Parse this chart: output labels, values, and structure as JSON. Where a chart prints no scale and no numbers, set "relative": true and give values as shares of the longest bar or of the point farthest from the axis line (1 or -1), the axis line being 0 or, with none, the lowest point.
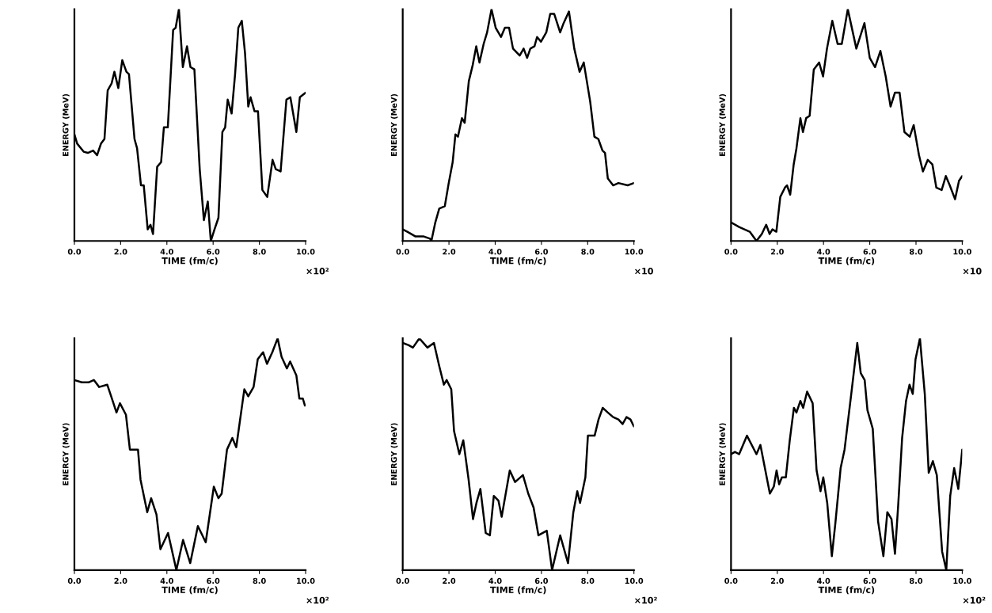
{
  "chart_data": [
    {
      "type": "line",
      "relative": true,
      "xlabel": "TIME (fm/c)",
      "ylabel": "ENERGY (MeV)",
      "annotations": [
        "×10²"
      ],
      "color": "#000000",
      "xlim": [
        0,
        10
      ],
      "xticks": [
        {
          "value": 0,
          "label": "0.0"
        },
        {
          "value": 2,
          "label": "2.0"
        },
        {
          "value": 4,
          "label": "4.0"
        },
        {
          "value": 6,
          "label": "6.0"
        },
        {
          "value": 8,
          "label": "8.0"
        },
        {
          "value": 10,
          "label": "10.0"
        }
      ],
      "x": [
        0,
        0.12,
        0.4,
        0.58,
        0.81,
        0.98,
        1.15,
        1.3,
        1.44,
        1.61,
        1.73,
        1.9,
        2.07,
        2.25,
        2.36,
        2.6,
        2.71,
        2.88,
        3.0,
        3.17,
        3.29,
        3.4,
        3.58,
        3.75,
        3.87,
        4.04,
        4.27,
        4.38,
        4.52,
        4.69,
        4.87,
        5.02,
        5.19,
        5.42,
        5.6,
        5.77,
        5.9,
        6.06,
        6.23,
        6.4,
        6.52,
        6.63,
        6.8,
        6.95,
        7.09,
        7.24,
        7.38,
        7.52,
        7.62,
        7.79,
        7.94,
        8.13,
        8.34,
        8.57,
        8.71,
        8.92,
        9.17,
        9.34,
        9.6,
        9.75,
        10
      ],
      "values": [
        0.46,
        0.42,
        0.385,
        0.38,
        0.39,
        0.37,
        0.42,
        0.44,
        0.65,
        0.68,
        0.73,
        0.66,
        0.78,
        0.73,
        0.72,
        0.44,
        0.4,
        0.24,
        0.24,
        0.05,
        0.07,
        0.03,
        0.32,
        0.34,
        0.49,
        0.49,
        0.91,
        0.92,
        1.0,
        0.75,
        0.84,
        0.75,
        0.74,
        0.31,
        0.09,
        0.17,
        0.0,
        0.05,
        0.1,
        0.47,
        0.49,
        0.61,
        0.55,
        0.72,
        0.92,
        0.95,
        0.81,
        0.58,
        0.62,
        0.56,
        0.56,
        0.22,
        0.19,
        0.35,
        0.31,
        0.3,
        0.61,
        0.62,
        0.47,
        0.62,
        0.64
      ]
    },
    {
      "type": "line",
      "relative": true,
      "xlabel": "TIME (fm/c)",
      "ylabel": "ENERGY (MeV)",
      "annotations": [
        "×10"
      ],
      "color": "#000000",
      "xlim": [
        0,
        10
      ],
      "xticks": [
        {
          "value": 0,
          "label": "0.0"
        },
        {
          "value": 2,
          "label": "2.0"
        },
        {
          "value": 4,
          "label": "4.0"
        },
        {
          "value": 6,
          "label": "6.0"
        },
        {
          "value": 8,
          "label": "8.0"
        },
        {
          "value": 10,
          "label": "10.0"
        }
      ],
      "x": [
        0,
        0.2,
        0.54,
        0.89,
        1.18,
        1.24,
        1.41,
        1.58,
        1.82,
        1.99,
        2.16,
        2.28,
        2.39,
        2.56,
        2.68,
        2.86,
        3.03,
        3.18,
        3.32,
        3.5,
        3.65,
        3.84,
        4.02,
        4.25,
        4.42,
        4.6,
        4.77,
        5.06,
        5.23,
        5.38,
        5.52,
        5.7,
        5.81,
        5.98,
        6.21,
        6.38,
        6.55,
        6.81,
        6.96,
        7.19,
        7.42,
        7.65,
        7.83,
        8.11,
        8.29,
        8.46,
        8.64,
        8.75,
        8.87,
        9.1,
        9.33,
        9.73,
        10
      ],
      "values": [
        0.05,
        0.04,
        0.02,
        0.02,
        0.01,
        0,
        0.08,
        0.14,
        0.15,
        0.25,
        0.34,
        0.46,
        0.45,
        0.53,
        0.51,
        0.69,
        0.76,
        0.84,
        0.77,
        0.85,
        0.9,
        1.0,
        0.92,
        0.88,
        0.92,
        0.92,
        0.83,
        0.8,
        0.83,
        0.79,
        0.83,
        0.84,
        0.88,
        0.86,
        0.9,
        0.98,
        0.98,
        0.9,
        0.94,
        0.99,
        0.83,
        0.73,
        0.77,
        0.6,
        0.45,
        0.44,
        0.39,
        0.38,
        0.27,
        0.24,
        0.25,
        0.24,
        0.25
      ]
    },
    {
      "type": "line",
      "relative": true,
      "xlabel": "TIME (fm/c)",
      "ylabel": "ENERGY (MeV)",
      "annotations": [
        "×10"
      ],
      "color": "#000000",
      "xlim": [
        0,
        10
      ],
      "xticks": [
        {
          "value": 0,
          "label": "0.0"
        },
        {
          "value": 2,
          "label": "2.0"
        },
        {
          "value": 4,
          "label": "4.0"
        },
        {
          "value": 6,
          "label": "6.0"
        },
        {
          "value": 8,
          "label": "8.0"
        },
        {
          "value": 10,
          "label": "10.0"
        }
      ],
      "x": [
        0,
        0.35,
        0.81,
        1.1,
        1.33,
        1.52,
        1.67,
        1.79,
        1.96,
        2.13,
        2.33,
        2.42,
        2.56,
        2.71,
        2.83,
        3.0,
        3.11,
        3.25,
        3.4,
        3.58,
        3.81,
        3.98,
        4.15,
        4.38,
        4.61,
        4.79,
        5.05,
        5.42,
        5.77,
        6.0,
        6.23,
        6.46,
        6.69,
        6.9,
        7.09,
        7.29,
        7.5,
        7.73,
        7.9,
        8.13,
        8.3,
        8.51,
        8.71,
        8.88,
        9.11,
        9.29,
        9.46,
        9.69,
        9.86,
        10
      ],
      "values": [
        0.08,
        0.06,
        0.04,
        0.0,
        0.03,
        0.07,
        0.03,
        0.05,
        0.04,
        0.19,
        0.23,
        0.24,
        0.2,
        0.33,
        0.4,
        0.53,
        0.47,
        0.53,
        0.54,
        0.74,
        0.77,
        0.71,
        0.83,
        0.95,
        0.85,
        0.85,
        1.0,
        0.83,
        0.94,
        0.79,
        0.75,
        0.82,
        0.71,
        0.58,
        0.64,
        0.64,
        0.47,
        0.45,
        0.5,
        0.37,
        0.3,
        0.35,
        0.33,
        0.23,
        0.22,
        0.28,
        0.24,
        0.18,
        0.26,
        0.28
      ]
    },
    {
      "type": "line",
      "relative": true,
      "xlabel": "TIME (fm/c)",
      "ylabel": "ENERGY (MeV)",
      "annotations": [
        "×10²"
      ],
      "color": "#000000",
      "xlim": [
        0,
        10
      ],
      "xticks": [
        {
          "value": 0,
          "label": "0.0"
        },
        {
          "value": 2,
          "label": "2.0"
        },
        {
          "value": 4,
          "label": "4.0"
        },
        {
          "value": 6,
          "label": "6.0"
        },
        {
          "value": 8,
          "label": "8.0"
        },
        {
          "value": 10,
          "label": "10.0"
        }
      ],
      "x": [
        0,
        0.32,
        0.61,
        0.84,
        1.07,
        1.42,
        1.59,
        1.82,
        1.97,
        2.23,
        2.4,
        2.57,
        2.75,
        2.86,
        3.15,
        3.32,
        3.55,
        3.72,
        4.05,
        4.41,
        4.7,
        5.01,
        5.34,
        5.68,
        6.03,
        6.23,
        6.37,
        6.6,
        6.83,
        7.0,
        7.35,
        7.52,
        7.75,
        7.93,
        8.16,
        8.33,
        8.56,
        8.79,
        8.96,
        9.19,
        9.33,
        9.6,
        9.73,
        9.88,
        9.97
      ],
      "values": [
        0.82,
        0.81,
        0.81,
        0.82,
        0.79,
        0.8,
        0.75,
        0.68,
        0.72,
        0.67,
        0.52,
        0.52,
        0.52,
        0.39,
        0.25,
        0.31,
        0.24,
        0.09,
        0.16,
        0.0,
        0.13,
        0.03,
        0.19,
        0.12,
        0.36,
        0.31,
        0.33,
        0.52,
        0.57,
        0.53,
        0.78,
        0.75,
        0.79,
        0.91,
        0.94,
        0.89,
        0.94,
        1.0,
        0.92,
        0.87,
        0.9,
        0.84,
        0.74,
        0.74,
        0.71
      ]
    },
    {
      "type": "line",
      "relative": true,
      "xlabel": "TIME (fm/c)",
      "ylabel": "ENERGY (MeV)",
      "annotations": [
        "×10²"
      ],
      "color": "#000000",
      "xlim": [
        0,
        10
      ],
      "xticks": [
        {
          "value": 0,
          "label": "0.0"
        },
        {
          "value": 2,
          "label": "2.0"
        },
        {
          "value": 4,
          "label": "4.0"
        },
        {
          "value": 6,
          "label": "6.0"
        },
        {
          "value": 8,
          "label": "8.0"
        },
        {
          "value": 10,
          "label": "10.0"
        }
      ],
      "x": [
        0,
        0.26,
        0.44,
        0.72,
        1.07,
        1.35,
        1.58,
        1.78,
        1.9,
        2.1,
        2.22,
        2.45,
        2.62,
        2.85,
        3.04,
        3.19,
        3.36,
        3.59,
        3.77,
        3.94,
        4.14,
        4.28,
        4.63,
        4.86,
        5.2,
        5.43,
        5.66,
        5.87,
        6.23,
        6.46,
        6.81,
        7.15,
        7.38,
        7.55,
        7.67,
        7.9,
        8.01,
        8.3,
        8.47,
        8.65,
        8.87,
        9.1,
        9.33,
        9.51,
        9.68,
        9.85,
        10
      ],
      "values": [
        0.98,
        0.97,
        0.96,
        1.0,
        0.96,
        0.98,
        0.88,
        0.8,
        0.82,
        0.78,
        0.6,
        0.5,
        0.56,
        0.39,
        0.22,
        0.29,
        0.35,
        0.16,
        0.15,
        0.32,
        0.3,
        0.23,
        0.43,
        0.38,
        0.41,
        0.33,
        0.27,
        0.15,
        0.17,
        0.0,
        0.15,
        0.03,
        0.25,
        0.34,
        0.29,
        0.4,
        0.58,
        0.58,
        0.65,
        0.7,
        0.68,
        0.66,
        0.65,
        0.63,
        0.66,
        0.65,
        0.62
      ]
    },
    {
      "type": "line",
      "relative": true,
      "xlabel": "TIME (fm/c)",
      "ylabel": "ENERGY (MeV)",
      "annotations": [
        "×10²"
      ],
      "color": "#000000",
      "xlim": [
        0,
        10
      ],
      "xticks": [
        {
          "value": 0,
          "label": "0.0"
        },
        {
          "value": 2,
          "label": "2.0"
        },
        {
          "value": 4,
          "label": "4.0"
        },
        {
          "value": 6,
          "label": "6.0"
        },
        {
          "value": 8,
          "label": "8.0"
        },
        {
          "value": 10,
          "label": "10.0"
        }
      ],
      "x": [
        0,
        0.17,
        0.35,
        0.69,
        1.1,
        1.27,
        1.68,
        1.85,
        1.97,
        2.08,
        2.2,
        2.37,
        2.54,
        2.72,
        2.83,
        3.0,
        3.12,
        3.29,
        3.53,
        3.7,
        3.87,
        3.99,
        4.16,
        4.36,
        4.51,
        4.74,
        4.91,
        5.2,
        5.46,
        5.61,
        5.78,
        5.9,
        6.13,
        6.36,
        6.59,
        6.76,
        6.94,
        7.09,
        7.23,
        7.4,
        7.57,
        7.72,
        7.86,
        7.98,
        8.17,
        8.38,
        8.55,
        8.73,
        8.9,
        9.13,
        9.31,
        9.48,
        9.65,
        9.83,
        10
      ],
      "values": [
        0.5,
        0.51,
        0.5,
        0.58,
        0.5,
        0.54,
        0.33,
        0.36,
        0.43,
        0.37,
        0.4,
        0.4,
        0.56,
        0.7,
        0.68,
        0.73,
        0.7,
        0.77,
        0.72,
        0.43,
        0.34,
        0.4,
        0.29,
        0.06,
        0.2,
        0.44,
        0.52,
        0.76,
        0.98,
        0.85,
        0.82,
        0.69,
        0.61,
        0.21,
        0.06,
        0.25,
        0.22,
        0.07,
        0.28,
        0.57,
        0.73,
        0.8,
        0.76,
        0.91,
        1.0,
        0.76,
        0.42,
        0.47,
        0.41,
        0.08,
        0.0,
        0.32,
        0.44,
        0.35,
        0.52
      ]
    }
  ]
}
